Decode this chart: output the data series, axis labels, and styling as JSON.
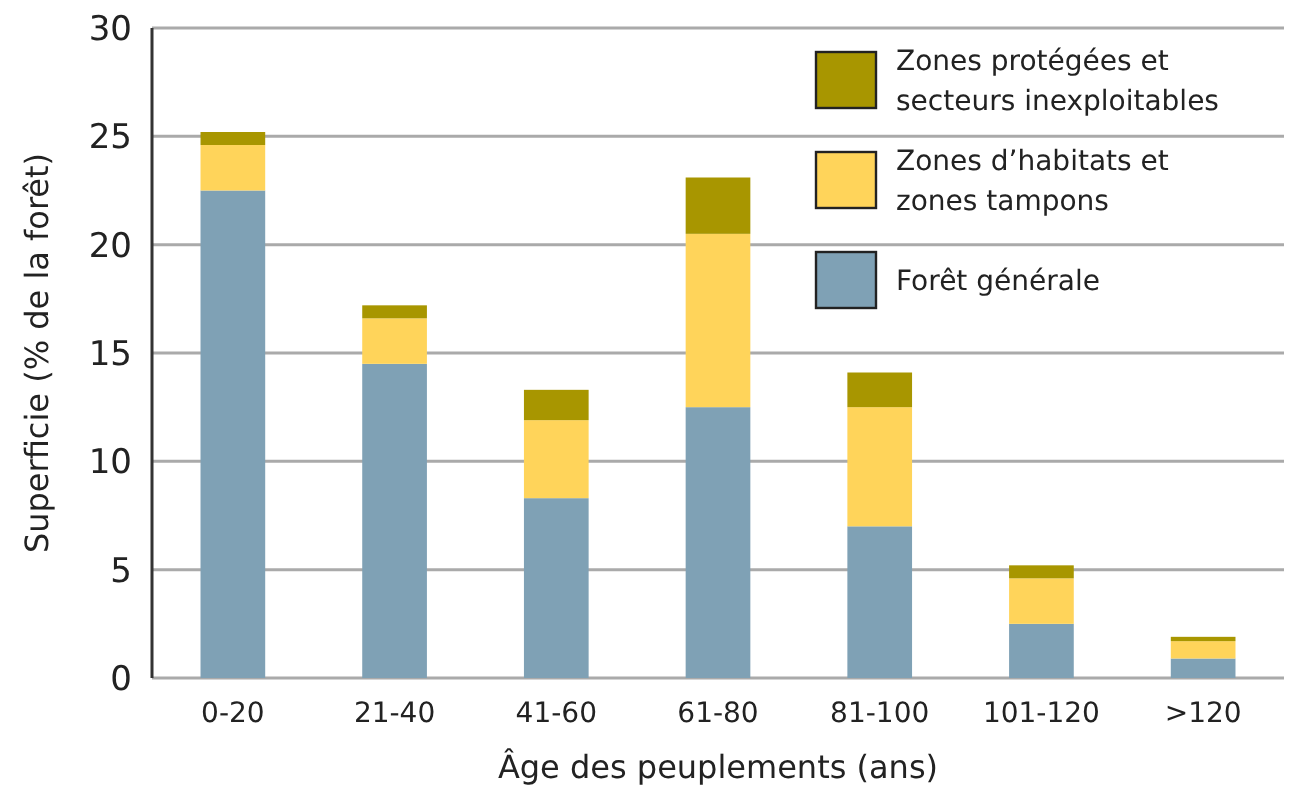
{
  "chart_data": {
    "type": "bar",
    "stacked": true,
    "xlabel": "Âge des peuplements (ans)",
    "ylabel": "Superficie (% de la forêt)",
    "categories": [
      "0-20",
      "21-40",
      "41-60",
      "61-80",
      "81-100",
      "101-120",
      ">120"
    ],
    "series": [
      {
        "name": "Forêt générale",
        "color": "#7fa1b5",
        "values": [
          22.5,
          14.5,
          8.3,
          12.5,
          7.0,
          2.5,
          0.9
        ]
      },
      {
        "name": "Zones d’habitats et zones tampons",
        "color": "#ffd45a",
        "values": [
          2.1,
          2.1,
          3.6,
          8.0,
          5.5,
          2.1,
          0.8
        ]
      },
      {
        "name": "Zones protégées et secteurs inexploitables",
        "color": "#a89600",
        "values": [
          0.6,
          0.6,
          1.4,
          2.6,
          1.6,
          0.6,
          0.2
        ]
      }
    ],
    "ylim": [
      0,
      30
    ],
    "yticks": [
      0,
      5,
      10,
      15,
      20,
      25,
      30
    ],
    "grid": "y",
    "legend": "top right"
  }
}
